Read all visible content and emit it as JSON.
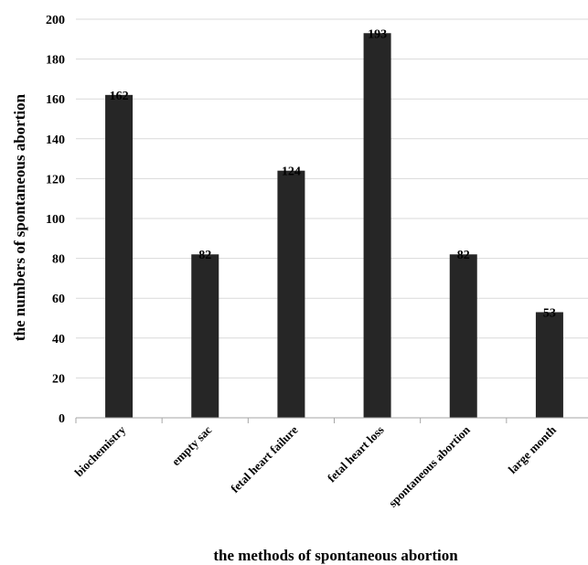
{
  "chart_data": {
    "type": "bar",
    "categories": [
      "biochemistry",
      "empty sac",
      "fetal heart failure",
      "fetal heart loss",
      "spontaneous abortion",
      "large month"
    ],
    "values": [
      162,
      82,
      124,
      193,
      82,
      53
    ],
    "data_labels": [
      "162",
      "82",
      "124",
      "193",
      "82",
      "53"
    ],
    "title": "",
    "xlabel": "the methods of spontaneous abortion",
    "ylabel": "the numbers of spontaneous abortion",
    "ylim": [
      0,
      200
    ],
    "yticks": [
      0,
      20,
      40,
      60,
      80,
      100,
      120,
      140,
      160,
      180,
      200
    ],
    "ytick_labels": [
      "0",
      "20",
      "40",
      "60",
      "80",
      "100",
      "120",
      "140",
      "160",
      "180",
      "200"
    ],
    "grid": true,
    "legend": "none",
    "colors": {
      "bar": "#262626",
      "grid": "#d9d9d9",
      "axis": "#a6a6a6"
    }
  }
}
